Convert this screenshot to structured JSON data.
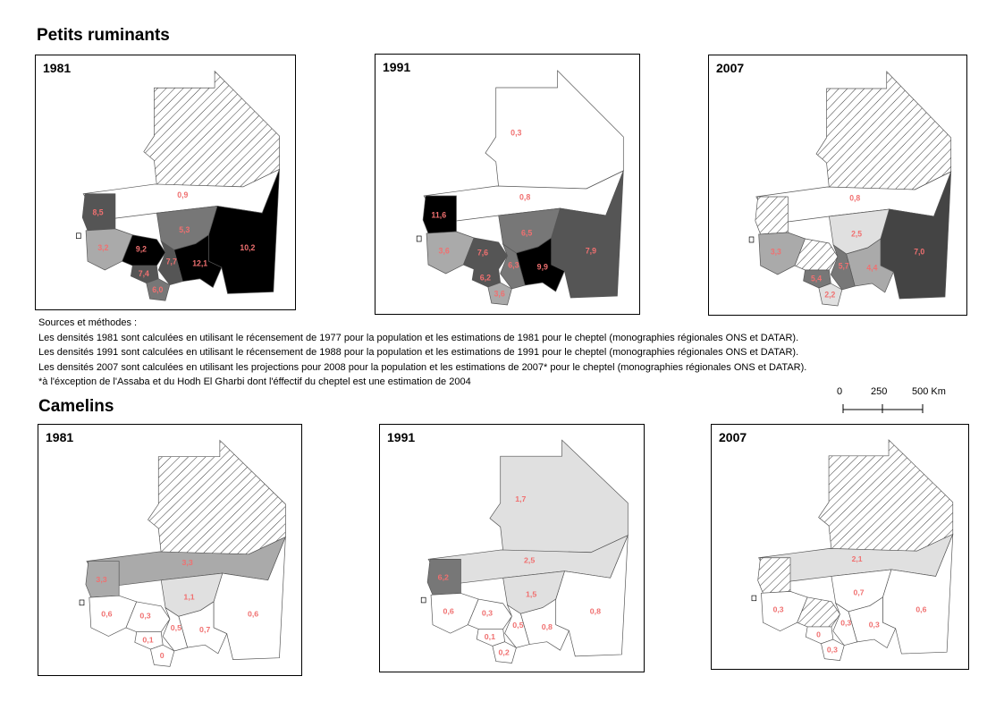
{
  "sections": {
    "petits": {
      "title": "Petits ruminants"
    },
    "camelins": {
      "title": "Camelins"
    }
  },
  "maps": {
    "p1981": {
      "year": "1981",
      "values": {
        "tiris": "",
        "adrar": "0,9",
        "inchiri": "8,5",
        "trarza": "3,2",
        "brakna": "9,2",
        "tagant": "5,3",
        "hodh_charghi": "10,2",
        "hodh_gharbi": "12,1",
        "assaba": "7,7",
        "gorgol": "7,4",
        "guidimaka": "6,0"
      }
    },
    "p1991": {
      "year": "1991",
      "values": {
        "tiris": "0,3",
        "adrar": "0,8",
        "inchiri": "11,6",
        "trarza": "3,6",
        "brakna": "7,6",
        "tagant": "6,5",
        "hodh_charghi": "7,9",
        "hodh_gharbi": "9,9",
        "assaba": "6,3",
        "gorgol": "6,2",
        "guidimaka": "3,6"
      }
    },
    "p2007": {
      "year": "2007",
      "values": {
        "tiris": "",
        "adrar": "0,8",
        "inchiri": "",
        "trarza": "3,3",
        "brakna": "",
        "tagant": "2,5",
        "hodh_charghi": "7,0",
        "hodh_gharbi": "4,4",
        "assaba": "5,7",
        "gorgol": "5,4",
        "guidimaka": "2,2"
      }
    },
    "c1981": {
      "year": "1981",
      "values": {
        "tiris": "",
        "adrar": "3,3",
        "inchiri": "3,3",
        "trarza": "0,6",
        "brakna": "0,3",
        "tagant": "1,1",
        "hodh_charghi": "0,6",
        "hodh_gharbi": "0,7",
        "assaba": "0,5",
        "gorgol": "0,1",
        "guidimaka": "0"
      }
    },
    "c1991": {
      "year": "1991",
      "values": {
        "tiris": "1,7",
        "adrar": "2,5",
        "inchiri": "6,2",
        "trarza": "0,6",
        "brakna": "0,3",
        "tagant": "1,5",
        "hodh_charghi": "0,8",
        "hodh_gharbi": "0,8",
        "assaba": "0,5",
        "gorgol": "0,1",
        "guidimaka": "0,2"
      }
    },
    "c2007": {
      "year": "2007",
      "values": {
        "tiris": "",
        "adrar": "2,1",
        "inchiri": "",
        "trarza": "0,3",
        "brakna": "",
        "tagant": "0,7",
        "hodh_charghi": "0,6",
        "hodh_gharbi": "0,3",
        "assaba": "0,3",
        "gorgol": "0",
        "guidimaka": "0,3"
      }
    }
  },
  "fills": {
    "p1981": {
      "tiris": "hatch",
      "adrar": "#ffffff",
      "inchiri": "#555555",
      "trarza": "#aaaaaa",
      "brakna": "#000000",
      "tagant": "#777777",
      "hodh_charghi": "#000000",
      "hodh_gharbi": "#000000",
      "assaba": "#555555",
      "gorgol": "#555555",
      "guidimaka": "#777777"
    },
    "p1991": {
      "tiris": "#ffffff",
      "adrar": "#ffffff",
      "inchiri": "#000000",
      "trarza": "#aaaaaa",
      "brakna": "#555555",
      "tagant": "#777777",
      "hodh_charghi": "#555555",
      "hodh_gharbi": "#000000",
      "assaba": "#777777",
      "gorgol": "#555555",
      "guidimaka": "#aaaaaa"
    },
    "p2007": {
      "tiris": "hatch",
      "adrar": "#ffffff",
      "inchiri": "hatch",
      "trarza": "#aaaaaa",
      "brakna": "hatch",
      "tagant": "#e0e0e0",
      "hodh_charghi": "#444444",
      "hodh_gharbi": "#aaaaaa",
      "assaba": "#777777",
      "gorgol": "#777777",
      "guidimaka": "#e0e0e0"
    },
    "c1981": {
      "tiris": "hatch",
      "adrar": "#aaaaaa",
      "inchiri": "#aaaaaa",
      "trarza": "#ffffff",
      "brakna": "#ffffff",
      "tagant": "#e0e0e0",
      "hodh_charghi": "#ffffff",
      "hodh_gharbi": "#ffffff",
      "assaba": "#ffffff",
      "gorgol": "#ffffff",
      "guidimaka": "#ffffff"
    },
    "c1991": {
      "tiris": "#e0e0e0",
      "adrar": "#e0e0e0",
      "inchiri": "#777777",
      "trarza": "#ffffff",
      "brakna": "#ffffff",
      "tagant": "#e0e0e0",
      "hodh_charghi": "#ffffff",
      "hodh_gharbi": "#ffffff",
      "assaba": "#ffffff",
      "gorgol": "#ffffff",
      "guidimaka": "#ffffff"
    },
    "c2007": {
      "tiris": "hatch",
      "adrar": "#e0e0e0",
      "inchiri": "hatch",
      "trarza": "#ffffff",
      "brakna": "hatch",
      "tagant": "#ffffff",
      "hodh_charghi": "#ffffff",
      "hodh_gharbi": "#ffffff",
      "assaba": "#ffffff",
      "gorgol": "#ffffff",
      "guidimaka": "#ffffff"
    }
  },
  "sources": {
    "title": "Sources et méthodes :",
    "line1": "Les densités 1981 sont calculées en utilisant le récensement de 1977 pour la population et les estimations de 1981 pour le cheptel (monographies régionales ONS et DATAR).",
    "line2": "Les densités 1991 sont calculées en utilisant le récensement de 1988 pour la population et les estimations de 1991 pour le cheptel (monographies régionales ONS et DATAR).",
    "line3": "Les densités 2007 sont calculées en utilisant les projections pour 2008 pour la population et les estimations de 2007* pour le cheptel (monographies régionales ONS et DATAR).",
    "note": "*à l'éxception de l'Assaba et du Hodh El Gharbi dont l'éffectif du cheptel est une estimation de 2004"
  },
  "scale": {
    "zero": "0",
    "mid": "250",
    "end": "500 Km"
  }
}
